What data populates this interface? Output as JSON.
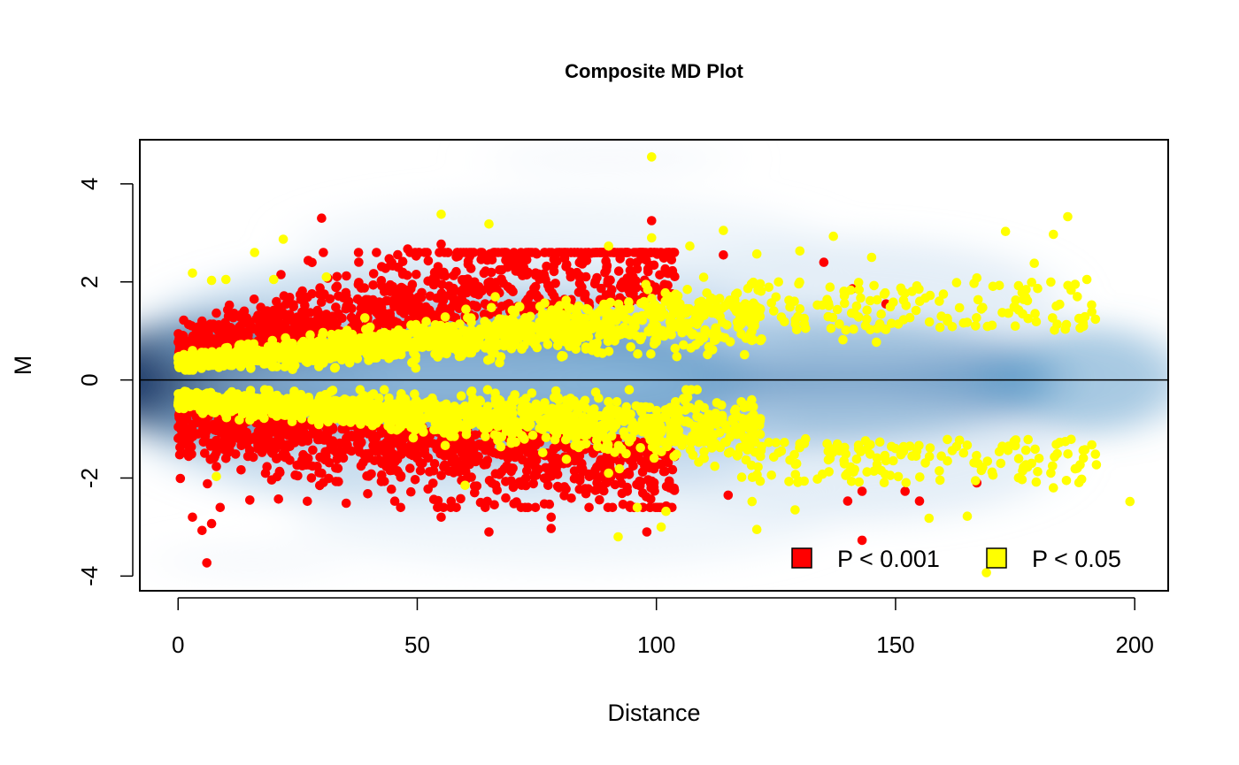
{
  "chart_data": {
    "type": "scatter",
    "title": "Composite MD Plot",
    "xlabel": "Distance",
    "ylabel": "M",
    "xlim": [
      -8,
      207
    ],
    "ylim": [
      -4.3,
      4.9
    ],
    "x_ticks": [
      0,
      50,
      100,
      150,
      200
    ],
    "x_tick_labels": [
      "0",
      "50",
      "100",
      "150",
      "200"
    ],
    "y_ticks": [
      -4,
      -2,
      0,
      2,
      4
    ],
    "y_tick_labels": [
      "-4",
      "-2",
      "0",
      "2",
      "4"
    ],
    "reference_line_y": 0,
    "background": "smoothed density of all points (blue)",
    "legend_position": "bottom-right",
    "series": [
      {
        "name": "P < 0.001",
        "color": "#ff0000",
        "description": "dense band for distance 0-100 with |M| mostly 0.5-2.5",
        "values": [
          [
            30,
            3.3
          ],
          [
            99,
            3.25
          ],
          [
            55,
            2.77
          ],
          [
            48,
            2.67
          ],
          [
            75,
            2.57
          ],
          [
            114,
            2.55
          ],
          [
            135,
            2.4
          ],
          [
            82,
            2.2
          ],
          [
            62,
            2.0
          ],
          [
            70,
            1.8
          ],
          [
            141,
            1.86
          ],
          [
            148,
            1.55
          ],
          [
            42,
            1.5
          ],
          [
            20,
            1.42
          ],
          [
            5,
            1.2
          ],
          [
            90,
            1.6
          ],
          [
            108,
            1.4
          ],
          [
            143,
            -3.27
          ],
          [
            65,
            -3.1
          ],
          [
            98,
            -3.1
          ],
          [
            78,
            -3.03
          ],
          [
            6,
            -3.73
          ],
          [
            5,
            -3.07
          ],
          [
            7,
            -2.93
          ],
          [
            3,
            -2.8
          ],
          [
            55,
            -2.8
          ],
          [
            78,
            -2.8
          ],
          [
            15,
            -2.45
          ],
          [
            21,
            -2.43
          ],
          [
            57,
            -2.6
          ],
          [
            140,
            -2.47
          ],
          [
            155,
            -2.47
          ],
          [
            152,
            -2.27
          ],
          [
            143,
            -2.27
          ],
          [
            167,
            -2.1
          ],
          [
            115,
            -2.35
          ],
          [
            62,
            -2.3
          ],
          [
            84,
            -2.0
          ],
          [
            30,
            -1.9
          ],
          [
            70,
            -1.8
          ],
          [
            100,
            -1.7
          ],
          [
            10,
            -1.6
          ],
          [
            40,
            -1.5
          ]
        ]
      },
      {
        "name": "P < 0.05",
        "color": "#ffff00",
        "description": "band following the red band, extending to distance ~190",
        "values": [
          [
            99,
            4.55
          ],
          [
            55,
            3.38
          ],
          [
            65,
            3.18
          ],
          [
            186,
            3.33
          ],
          [
            173,
            3.03
          ],
          [
            22,
            2.87
          ],
          [
            16,
            2.6
          ],
          [
            3,
            2.18
          ],
          [
            7,
            2.03
          ],
          [
            10,
            2.05
          ],
          [
            31,
            2.1
          ],
          [
            20,
            2.05
          ],
          [
            90,
            2.73
          ],
          [
            99,
            2.9
          ],
          [
            107,
            2.73
          ],
          [
            114,
            3.05
          ],
          [
            121,
            2.57
          ],
          [
            130,
            2.63
          ],
          [
            137,
            2.93
          ],
          [
            145,
            2.5
          ],
          [
            183,
            2.97
          ],
          [
            179,
            2.38
          ],
          [
            190,
            2.05
          ],
          [
            167,
            2.08
          ],
          [
            152,
            1.77
          ],
          [
            160,
            1.75
          ],
          [
            175,
            1.48
          ],
          [
            188,
            1.7
          ],
          [
            191,
            1.53
          ],
          [
            139,
            0.82
          ],
          [
            146,
            0.77
          ],
          [
            130,
            1.45
          ],
          [
            118,
            1.25
          ],
          [
            3,
            0.6
          ],
          [
            50,
            1.0
          ],
          [
            80,
            1.2
          ],
          [
            169,
            -3.93
          ],
          [
            121,
            -3.05
          ],
          [
            92,
            -3.2
          ],
          [
            101,
            -3.0
          ],
          [
            96,
            -2.6
          ],
          [
            102,
            -2.68
          ],
          [
            120,
            -2.48
          ],
          [
            129,
            -2.65
          ],
          [
            157,
            -2.82
          ],
          [
            165,
            -2.78
          ],
          [
            199,
            -2.48
          ],
          [
            8,
            -1.97
          ],
          [
            60,
            -2.15
          ],
          [
            90,
            -1.9
          ],
          [
            110,
            -1.6
          ],
          [
            130,
            -1.3
          ],
          [
            150,
            -1.4
          ],
          [
            172,
            -1.7
          ],
          [
            180,
            -1.6
          ],
          [
            183,
            -2.2
          ],
          [
            188,
            -1.8
          ],
          [
            192,
            -1.73
          ],
          [
            30,
            -0.8
          ],
          [
            70,
            -0.9
          ],
          [
            140,
            -1.9
          ]
        ]
      }
    ],
    "legend": [
      {
        "label": "P < 0.001",
        "color": "#ff0000"
      },
      {
        "label": "P < 0.05",
        "color": "#ffff00"
      }
    ]
  }
}
